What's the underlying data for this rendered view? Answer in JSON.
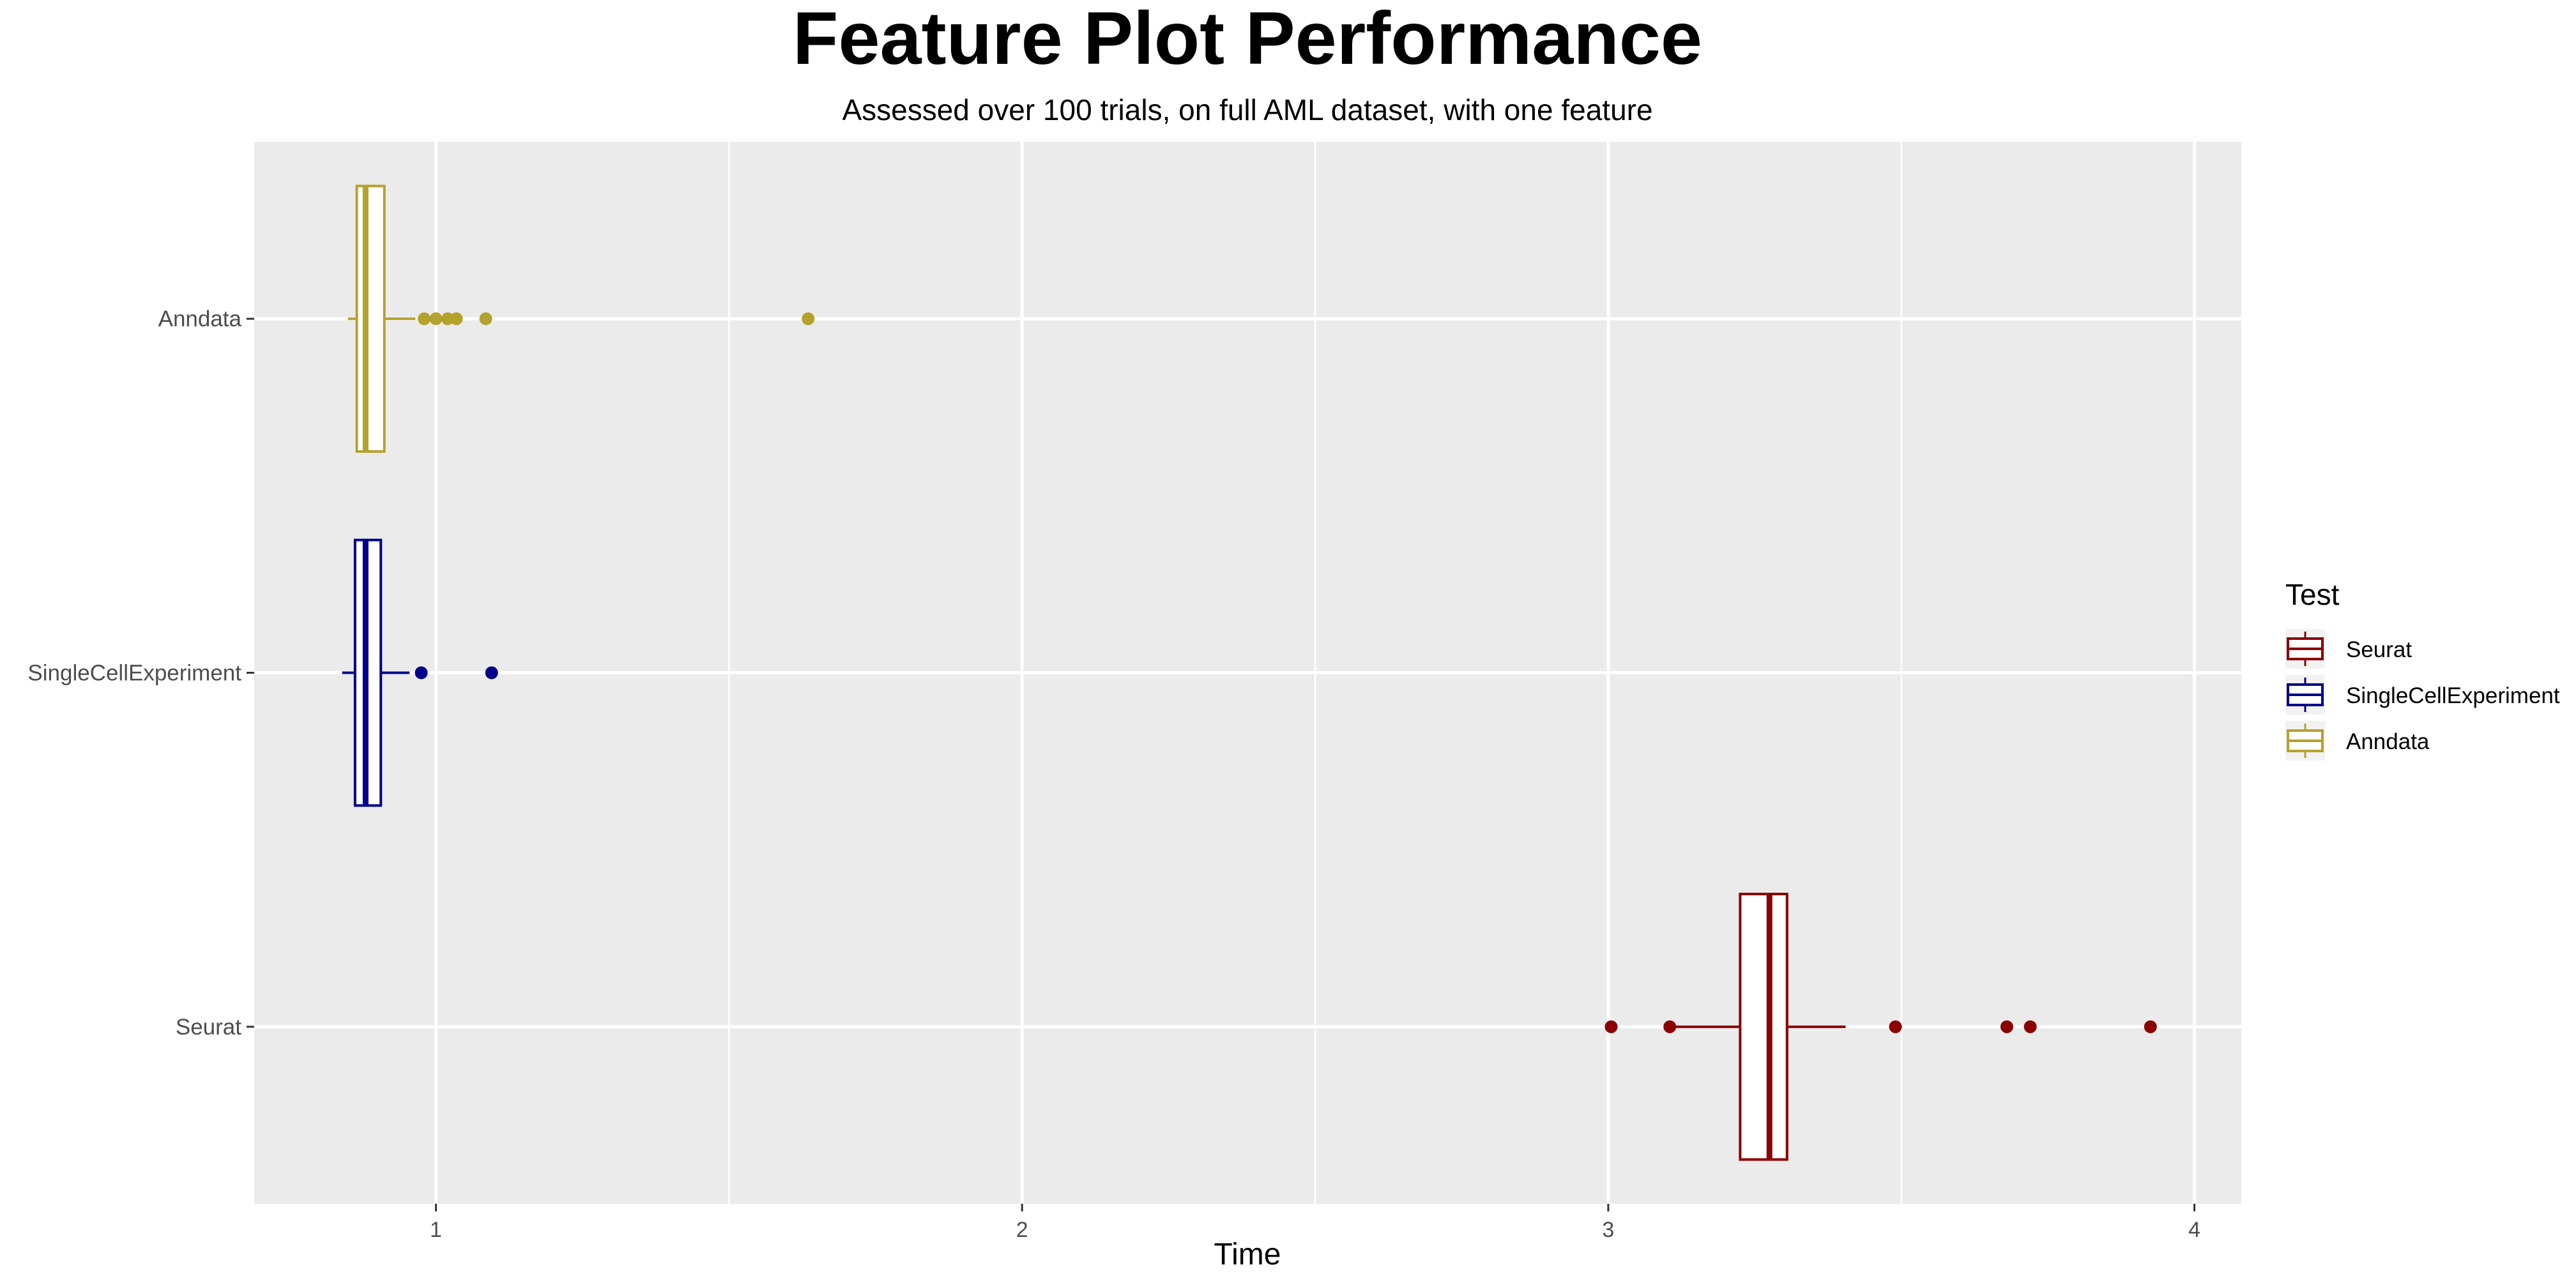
{
  "chart_data": {
    "type": "boxplot",
    "orientation": "horizontal",
    "title": "Feature Plot Performance",
    "subtitle": "Assessed over 100 trials, on full AML dataset, with one feature",
    "xlabel": "Time",
    "ylabel": "",
    "xlim": [
      0.69,
      4.08
    ],
    "x_ticks": [
      1,
      2,
      3,
      4
    ],
    "categories": [
      "Seurat",
      "SingleCellExperiment",
      "Anndata"
    ],
    "grid": true,
    "legend": {
      "title": "Test",
      "placement": "right",
      "entries": [
        "Seurat",
        "SingleCellExperiment",
        "Anndata"
      ]
    },
    "series": [
      {
        "name": "Seurat",
        "color": "#8B0000",
        "min": 3.11,
        "q1": 3.225,
        "median": 3.275,
        "q3": 3.305,
        "max": 3.405,
        "outliers": [
          3.005,
          3.105,
          3.49,
          3.68,
          3.72,
          3.925
        ]
      },
      {
        "name": "SingleCellExperiment",
        "color": "#00008B",
        "min": 0.84,
        "q1": 0.862,
        "median": 0.88,
        "q3": 0.906,
        "max": 0.955,
        "outliers": [
          0.975,
          1.095
        ]
      },
      {
        "name": "Anndata",
        "color": "#B5A22B",
        "min": 0.85,
        "q1": 0.865,
        "median": 0.88,
        "q3": 0.912,
        "max": 0.965,
        "outliers": [
          0.98,
          1.0,
          1.02,
          1.035,
          1.085,
          1.635
        ]
      }
    ]
  }
}
